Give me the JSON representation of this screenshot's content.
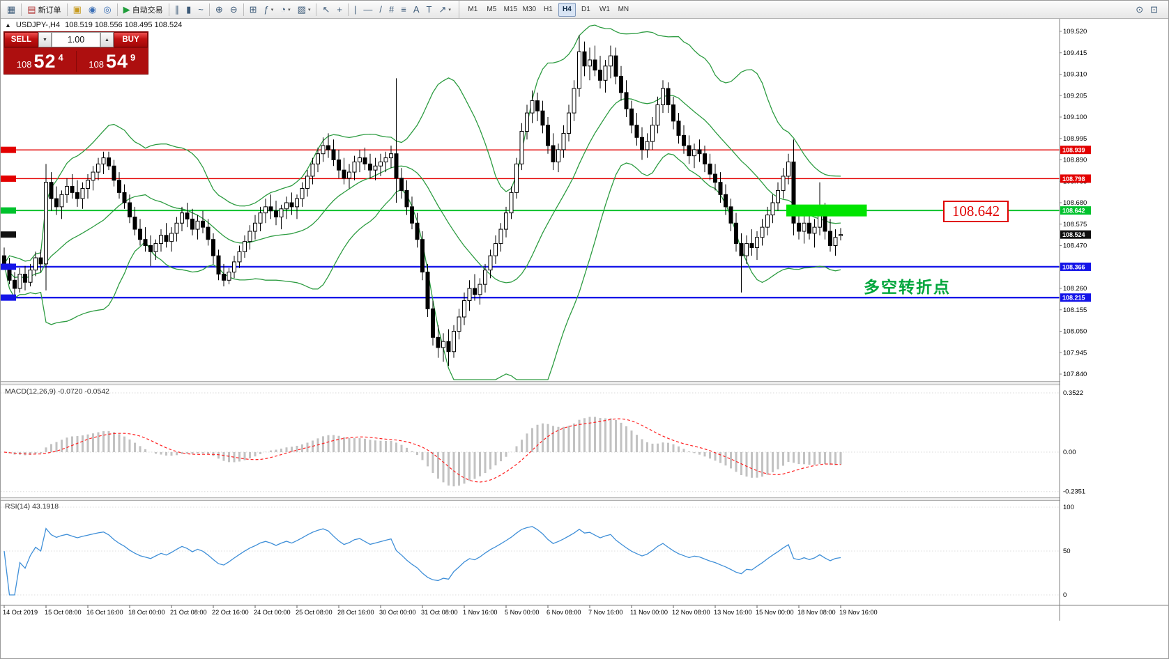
{
  "toolbar": {
    "groups": [
      {
        "items": [
          {
            "name": "new-chart",
            "glyph": "▦"
          }
        ]
      },
      {
        "items": [
          {
            "name": "new-order",
            "glyph": "▤",
            "glyph_color": "#b03030",
            "label": "新订单"
          }
        ]
      },
      {
        "items": [
          {
            "name": "chart-template",
            "glyph": "▣",
            "glyph_color": "#c79a1e"
          },
          {
            "name": "profiles",
            "glyph": "◉",
            "glyph_color": "#3b6fb6"
          },
          {
            "name": "community",
            "glyph": "◎",
            "glyph_color": "#3b6fb6"
          }
        ]
      },
      {
        "items": [
          {
            "name": "auto-trading",
            "glyph": "▶",
            "glyph_color": "#1f9d3a",
            "label": "自动交易"
          }
        ]
      },
      {
        "items": [
          {
            "name": "bar-chart-mode",
            "glyph": "∥"
          },
          {
            "name": "candlestick-mode",
            "glyph": "▮"
          },
          {
            "name": "line-chart-mode",
            "glyph": "~"
          }
        ]
      },
      {
        "items": [
          {
            "name": "zoom-in",
            "glyph": "⊕"
          },
          {
            "name": "zoom-out",
            "glyph": "⊖"
          }
        ]
      },
      {
        "items": [
          {
            "name": "tile-windows",
            "glyph": "⊞"
          },
          {
            "name": "indicators-list",
            "glyph": "ƒ",
            "dropdown": true
          },
          {
            "name": "period-menu",
            "glyph": "◔",
            "dropdown": true
          },
          {
            "name": "template-menu",
            "glyph": "▨",
            "dropdown": true
          }
        ]
      },
      {
        "items": [
          {
            "name": "cursor-tool",
            "glyph": "↖"
          },
          {
            "name": "crosshair-tool",
            "glyph": "+"
          }
        ]
      },
      {
        "items": [
          {
            "name": "vertical-line-tool",
            "glyph": "|"
          },
          {
            "name": "horizontal-line-tool",
            "glyph": "—"
          },
          {
            "name": "trendline-tool",
            "glyph": "/"
          },
          {
            "name": "channel-tool",
            "glyph": "#"
          },
          {
            "name": "fibonacci-tool",
            "glyph": "≡"
          },
          {
            "name": "text-tool",
            "glyph": "A"
          },
          {
            "name": "label-tool",
            "glyph": "T"
          },
          {
            "name": "arrows-tool",
            "glyph": "↗",
            "dropdown": true
          }
        ]
      }
    ],
    "timeframes": [
      "M1",
      "M5",
      "M15",
      "M30",
      "H1",
      "H4",
      "D1",
      "W1",
      "MN"
    ],
    "active_timeframe": "H4",
    "right_icons": [
      {
        "name": "search",
        "glyph": "⊙"
      },
      {
        "name": "chat",
        "glyph": "⊡"
      }
    ]
  },
  "symbol_header": {
    "marker": "▲",
    "symbol": "USDJPY-,H4",
    "ohlc": "108.519 108.556 108.495 108.524"
  },
  "trade_panel": {
    "sell_label": "SELL",
    "buy_label": "BUY",
    "volume": "1.00",
    "dropdown_glyph": "▼",
    "up_glyph": "▲",
    "sell_price": {
      "prefix": "108",
      "big": "52",
      "sup": "4"
    },
    "buy_price": {
      "prefix": "108",
      "big": "54",
      "sup": "9"
    }
  },
  "chart_data": {
    "type": "candlestick",
    "symbol": "USDJPY",
    "period": "H4",
    "y_axis": {
      "max": 109.52,
      "min": 107.84,
      "ticks": [
        109.52,
        109.415,
        109.31,
        109.205,
        109.1,
        108.995,
        108.89,
        108.785,
        108.68,
        108.575,
        108.47,
        108.365,
        108.26,
        108.155,
        108.05,
        107.945,
        107.84
      ]
    },
    "x_labels": [
      "14 Oct 2019",
      "15 Oct 08:00",
      "16 Oct 16:00",
      "18 Oct 00:00",
      "21 Oct 08:00",
      "22 Oct 16:00",
      "24 Oct 00:00",
      "25 Oct 08:00",
      "28 Oct 16:00",
      "30 Oct 00:00",
      "31 Oct 08:00",
      "1 Nov 16:00",
      "5 Nov 00:00",
      "6 Nov 08:00",
      "7 Nov 16:00",
      "11 Nov 00:00",
      "12 Nov 08:00",
      "13 Nov 16:00",
      "15 Nov 00:00",
      "18 Nov 08:00",
      "19 Nov 16:00"
    ],
    "bars_per_label": 8,
    "candles": [
      [
        108.42,
        108.46,
        108.35,
        108.38
      ],
      [
        108.38,
        108.41,
        108.28,
        108.3
      ],
      [
        108.3,
        108.34,
        108.21,
        108.26
      ],
      [
        108.26,
        108.36,
        108.24,
        108.33
      ],
      [
        108.33,
        108.37,
        108.25,
        108.29
      ],
      [
        108.29,
        108.38,
        108.27,
        108.35
      ],
      [
        108.35,
        108.44,
        108.32,
        108.41
      ],
      [
        108.41,
        108.45,
        108.34,
        108.38
      ],
      [
        108.38,
        108.87,
        108.25,
        108.78
      ],
      [
        108.78,
        108.83,
        108.64,
        108.7
      ],
      [
        108.7,
        108.76,
        108.62,
        108.66
      ],
      [
        108.66,
        108.74,
        108.6,
        108.72
      ],
      [
        108.72,
        108.8,
        108.68,
        108.76
      ],
      [
        108.76,
        108.82,
        108.7,
        108.73
      ],
      [
        108.73,
        108.79,
        108.66,
        108.7
      ],
      [
        108.7,
        108.78,
        108.65,
        108.75
      ],
      [
        108.75,
        108.82,
        108.7,
        108.79
      ],
      [
        108.79,
        108.86,
        108.74,
        108.83
      ],
      [
        108.83,
        108.9,
        108.79,
        108.87
      ],
      [
        108.87,
        108.93,
        108.82,
        108.9
      ],
      [
        108.9,
        108.93,
        108.84,
        108.86
      ],
      [
        108.86,
        108.89,
        108.76,
        108.79
      ],
      [
        108.79,
        108.83,
        108.7,
        108.73
      ],
      [
        108.73,
        108.77,
        108.65,
        108.68
      ],
      [
        108.68,
        108.72,
        108.58,
        108.61
      ],
      [
        108.61,
        108.66,
        108.52,
        108.55
      ],
      [
        108.55,
        108.6,
        108.47,
        108.5
      ],
      [
        108.5,
        108.56,
        108.44,
        108.47
      ],
      [
        108.47,
        108.52,
        108.37,
        108.44
      ],
      [
        108.44,
        108.5,
        108.4,
        108.48
      ],
      [
        108.48,
        108.55,
        108.44,
        108.52
      ],
      [
        108.52,
        108.58,
        108.46,
        108.49
      ],
      [
        108.49,
        108.56,
        108.44,
        108.53
      ],
      [
        108.53,
        108.61,
        108.49,
        108.58
      ],
      [
        108.58,
        108.66,
        108.54,
        108.63
      ],
      [
        108.63,
        108.68,
        108.56,
        108.6
      ],
      [
        108.6,
        108.65,
        108.52,
        108.55
      ],
      [
        108.55,
        108.62,
        108.5,
        108.59
      ],
      [
        108.59,
        108.64,
        108.53,
        108.56
      ],
      [
        108.56,
        108.6,
        108.47,
        108.5
      ],
      [
        108.5,
        108.53,
        108.38,
        108.42
      ],
      [
        108.42,
        108.45,
        108.3,
        108.33
      ],
      [
        108.33,
        108.38,
        108.27,
        108.3
      ],
      [
        108.3,
        108.36,
        108.28,
        108.34
      ],
      [
        108.34,
        108.42,
        108.31,
        108.39
      ],
      [
        108.39,
        108.47,
        108.36,
        108.44
      ],
      [
        108.44,
        108.52,
        108.41,
        108.49
      ],
      [
        108.49,
        108.57,
        108.45,
        108.54
      ],
      [
        108.54,
        108.62,
        108.5,
        108.58
      ],
      [
        108.58,
        108.66,
        108.54,
        108.63
      ],
      [
        108.63,
        108.7,
        108.58,
        108.66
      ],
      [
        108.66,
        108.72,
        108.6,
        108.64
      ],
      [
        108.64,
        108.69,
        108.57,
        108.61
      ],
      [
        108.61,
        108.67,
        108.55,
        108.65
      ],
      [
        108.65,
        108.71,
        108.6,
        108.68
      ],
      [
        108.68,
        108.73,
        108.62,
        108.66
      ],
      [
        108.66,
        108.72,
        108.6,
        108.7
      ],
      [
        108.7,
        108.78,
        108.66,
        108.75
      ],
      [
        108.75,
        108.84,
        108.71,
        108.81
      ],
      [
        108.81,
        108.9,
        108.77,
        108.87
      ],
      [
        108.87,
        108.95,
        108.83,
        108.92
      ],
      [
        108.92,
        109.0,
        108.88,
        108.96
      ],
      [
        108.96,
        109.02,
        108.9,
        108.94
      ],
      [
        108.94,
        108.99,
        108.86,
        108.89
      ],
      [
        108.89,
        108.94,
        108.8,
        108.84
      ],
      [
        108.84,
        108.9,
        108.77,
        108.8
      ],
      [
        108.8,
        108.87,
        108.75,
        108.83
      ],
      [
        108.83,
        108.91,
        108.79,
        108.88
      ],
      [
        108.88,
        108.94,
        108.83,
        108.9
      ],
      [
        108.9,
        108.95,
        108.84,
        108.87
      ],
      [
        108.87,
        108.92,
        108.8,
        108.84
      ],
      [
        108.84,
        108.9,
        108.79,
        108.86
      ],
      [
        108.86,
        108.92,
        108.81,
        108.88
      ],
      [
        108.88,
        108.93,
        108.83,
        108.9
      ],
      [
        108.9,
        108.96,
        108.85,
        108.92
      ],
      [
        108.92,
        109.29,
        108.68,
        108.8
      ],
      [
        108.8,
        108.85,
        108.7,
        108.74
      ],
      [
        108.74,
        108.79,
        108.62,
        108.66
      ],
      [
        108.66,
        108.71,
        108.55,
        108.58
      ],
      [
        108.58,
        108.63,
        108.46,
        108.5
      ],
      [
        108.5,
        108.54,
        108.3,
        108.34
      ],
      [
        108.34,
        108.38,
        108.12,
        108.16
      ],
      [
        108.16,
        108.2,
        107.98,
        108.02
      ],
      [
        108.02,
        108.08,
        107.92,
        107.97
      ],
      [
        107.97,
        108.04,
        107.9,
        108.0
      ],
      [
        108.0,
        108.06,
        107.88,
        107.95
      ],
      [
        107.95,
        108.08,
        107.92,
        108.05
      ],
      [
        108.05,
        108.16,
        108.01,
        108.12
      ],
      [
        108.12,
        108.24,
        108.08,
        108.2
      ],
      [
        108.2,
        108.3,
        108.15,
        108.26
      ],
      [
        108.26,
        108.33,
        108.2,
        108.23
      ],
      [
        108.23,
        108.31,
        108.18,
        108.28
      ],
      [
        108.28,
        108.38,
        108.24,
        108.35
      ],
      [
        108.35,
        108.45,
        108.31,
        108.42
      ],
      [
        108.42,
        108.52,
        108.38,
        108.48
      ],
      [
        108.48,
        108.58,
        108.44,
        108.55
      ],
      [
        108.55,
        108.66,
        108.51,
        108.63
      ],
      [
        108.63,
        108.76,
        108.6,
        108.73
      ],
      [
        108.73,
        108.9,
        108.7,
        108.87
      ],
      [
        108.87,
        109.07,
        108.84,
        109.03
      ],
      [
        109.03,
        109.16,
        108.99,
        109.12
      ],
      [
        109.12,
        109.23,
        109.07,
        109.18
      ],
      [
        109.18,
        109.22,
        109.08,
        109.13
      ],
      [
        109.13,
        109.18,
        109.02,
        109.06
      ],
      [
        109.06,
        109.1,
        108.92,
        108.96
      ],
      [
        108.96,
        109.02,
        108.84,
        108.88
      ],
      [
        108.88,
        108.97,
        108.83,
        108.94
      ],
      [
        108.94,
        109.06,
        108.9,
        109.02
      ],
      [
        109.02,
        109.16,
        108.98,
        109.12
      ],
      [
        109.12,
        109.28,
        109.08,
        109.24
      ],
      [
        109.24,
        109.5,
        109.2,
        109.42
      ],
      [
        109.42,
        109.47,
        109.3,
        109.35
      ],
      [
        109.35,
        109.44,
        109.28,
        109.38
      ],
      [
        109.38,
        109.45,
        109.3,
        109.33
      ],
      [
        109.33,
        109.4,
        109.24,
        109.28
      ],
      [
        109.28,
        109.38,
        109.22,
        109.35
      ],
      [
        109.35,
        109.45,
        109.29,
        109.4
      ],
      [
        109.4,
        109.44,
        109.26,
        109.3
      ],
      [
        109.3,
        109.35,
        109.18,
        109.22
      ],
      [
        109.22,
        109.28,
        109.1,
        109.14
      ],
      [
        109.14,
        109.18,
        109.02,
        109.06
      ],
      [
        109.06,
        109.12,
        108.96,
        109.0
      ],
      [
        109.0,
        109.05,
        108.89,
        108.94
      ],
      [
        108.94,
        109.02,
        108.9,
        108.98
      ],
      [
        108.98,
        109.1,
        108.94,
        109.06
      ],
      [
        109.06,
        109.2,
        109.02,
        109.16
      ],
      [
        109.16,
        109.28,
        109.12,
        109.24
      ],
      [
        109.24,
        109.27,
        109.12,
        109.16
      ],
      [
        109.16,
        109.2,
        109.04,
        109.08
      ],
      [
        109.08,
        109.12,
        108.97,
        109.01
      ],
      [
        109.01,
        109.06,
        108.92,
        108.96
      ],
      [
        108.96,
        109.01,
        108.87,
        108.91
      ],
      [
        108.91,
        108.97,
        108.85,
        108.94
      ],
      [
        108.94,
        108.99,
        108.88,
        108.92
      ],
      [
        108.92,
        108.96,
        108.83,
        108.87
      ],
      [
        108.87,
        108.92,
        108.79,
        108.82
      ],
      [
        108.82,
        108.87,
        108.74,
        108.78
      ],
      [
        108.78,
        108.83,
        108.68,
        108.72
      ],
      [
        108.72,
        108.77,
        108.62,
        108.66
      ],
      [
        108.66,
        108.7,
        108.54,
        108.58
      ],
      [
        108.58,
        108.63,
        108.44,
        108.48
      ],
      [
        108.48,
        108.53,
        108.24,
        108.42
      ],
      [
        108.42,
        108.52,
        108.38,
        108.48
      ],
      [
        108.48,
        108.55,
        108.42,
        108.46
      ],
      [
        108.46,
        108.54,
        108.4,
        108.51
      ],
      [
        108.51,
        108.6,
        108.47,
        108.56
      ],
      [
        108.56,
        108.66,
        108.52,
        108.62
      ],
      [
        108.62,
        108.72,
        108.58,
        108.68
      ],
      [
        108.68,
        108.78,
        108.64,
        108.74
      ],
      [
        108.74,
        108.85,
        108.7,
        108.81
      ],
      [
        108.81,
        108.92,
        108.77,
        108.88
      ],
      [
        108.88,
        108.99,
        108.52,
        108.58
      ],
      [
        108.58,
        108.66,
        108.5,
        108.54
      ],
      [
        108.54,
        108.62,
        108.48,
        108.58
      ],
      [
        108.58,
        108.64,
        108.5,
        108.53
      ],
      [
        108.53,
        108.6,
        108.46,
        108.56
      ],
      [
        108.56,
        108.78,
        108.52,
        108.62
      ],
      [
        108.62,
        108.68,
        108.5,
        108.54
      ],
      [
        108.54,
        108.6,
        108.44,
        108.47
      ],
      [
        108.47,
        108.55,
        108.42,
        108.51
      ],
      [
        108.519,
        108.556,
        108.495,
        108.524
      ]
    ],
    "hlines": [
      {
        "price": 108.939,
        "color": "#e30000",
        "tag": "108.939",
        "width": 1.4
      },
      {
        "price": 108.798,
        "color": "#e30000",
        "tag": "108.798",
        "width": 1.4
      },
      {
        "price": 108.642,
        "color": "#00c22d",
        "tag": "108.642",
        "width": 2
      },
      {
        "price": 108.366,
        "color": "#1414e8",
        "tag": "108.366",
        "width": 2.4
      },
      {
        "price": 108.215,
        "color": "#1414e8",
        "tag": "108.215",
        "width": 2.4
      }
    ],
    "current_price": {
      "value": 108.524,
      "tag": "108.524",
      "tag_color": "#101010"
    },
    "highlight_zone": {
      "price": 108.642,
      "from_bar": 150,
      "to_bar": 165,
      "color": "#00e400"
    },
    "price_callout": {
      "text": "108.642",
      "color": "#e00000"
    },
    "annotation": {
      "text": "多空转折点",
      "color": "#00a63c"
    },
    "indicators": {
      "bollinger": {
        "period": 20,
        "deviations": 2,
        "color": "#2d9c41"
      },
      "macd": {
        "label": "MACD(12,26,9) -0.0720 -0.0542",
        "fast": 12,
        "slow": 26,
        "signal": 9,
        "current_values": [
          -0.072,
          -0.0542
        ],
        "axis_ticks": [
          {
            "label": "0.3522",
            "value": 0.3522
          },
          {
            "label": "0.00",
            "value": 0
          },
          {
            "label": "-0.2351",
            "value": -0.2351
          }
        ],
        "histogram_color": "#c2c2c2",
        "signal_color": "#ff2020"
      },
      "rsi": {
        "label": "RSI(14) 43.1918",
        "period": 14,
        "current_value": 43.1918,
        "axis_ticks": [
          {
            "label": "100",
            "value": 100
          },
          {
            "label": "50",
            "value": 50
          },
          {
            "label": "0",
            "value": 0
          }
        ],
        "color": "#3f8fd8"
      }
    }
  }
}
